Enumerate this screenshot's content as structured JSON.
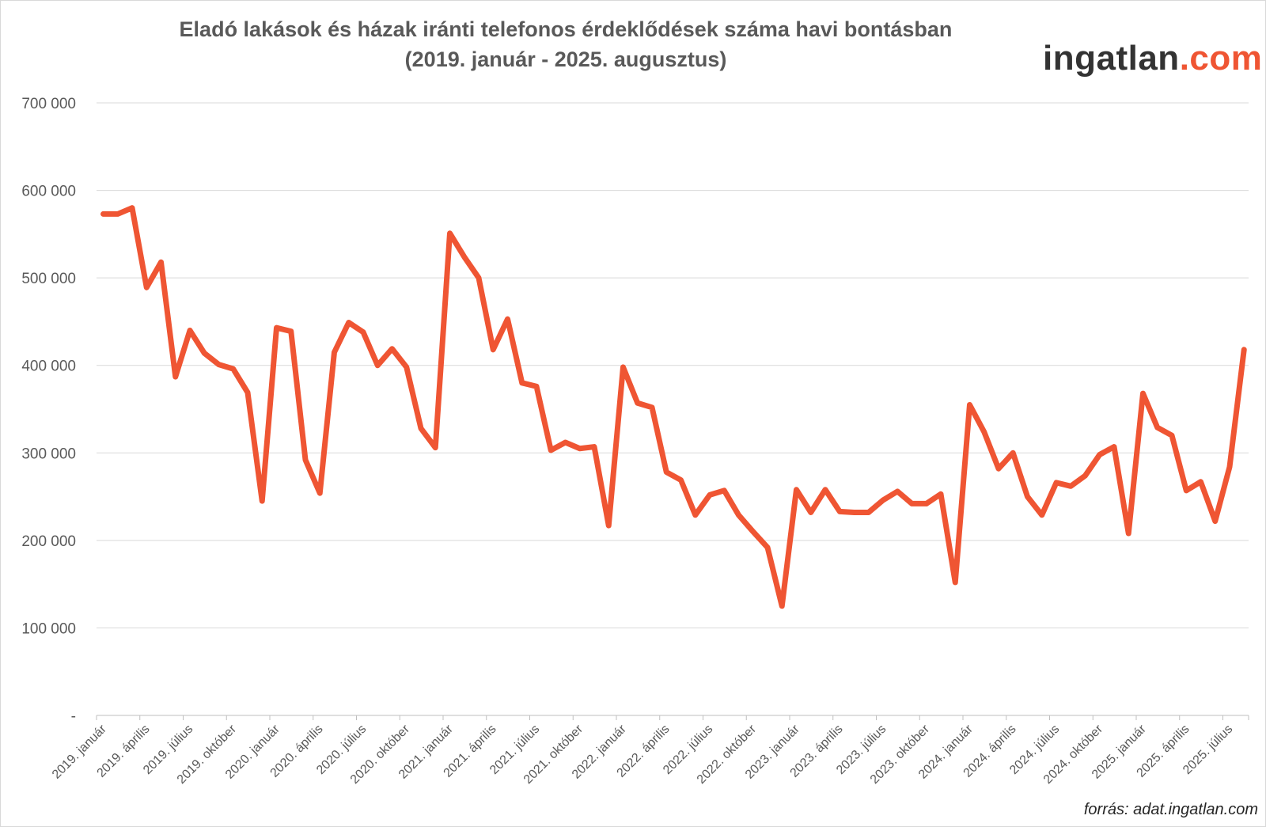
{
  "title_lines": [
    "Eladó lakások és házak iránti telefonos érdeklődések száma havi bontásban",
    "(2019. január - 2025. augusztus)"
  ],
  "brand": {
    "name": "ingatlan",
    "suffix": ".com",
    "name_color": "#333333",
    "suffix_color": "#ef5533"
  },
  "source": "forrás: adat.ingatlan.com",
  "chart_data": {
    "type": "line",
    "title": "Eladó lakások és házak iránti telefonos érdeklődések száma havi bontásban (2019. január - 2025. augusztus)",
    "ylim": [
      0,
      700000
    ],
    "grid": true,
    "legend": "none",
    "line_color": "#ef5533",
    "y_ticks": [
      {
        "value": 0,
        "label": "-"
      },
      {
        "value": 100000,
        "label": "100 000"
      },
      {
        "value": 200000,
        "label": "200 000"
      },
      {
        "value": 300000,
        "label": "300 000"
      },
      {
        "value": 400000,
        "label": "400 000"
      },
      {
        "value": 500000,
        "label": "500 000"
      },
      {
        "value": 600000,
        "label": "600 000"
      },
      {
        "value": 700000,
        "label": "700 000"
      }
    ],
    "x_tick_labels": [
      "2019. január",
      "2019. április",
      "2019. július",
      "2019. október",
      "2020. január",
      "2020. április",
      "2020. július",
      "2020. október",
      "2021. január",
      "2021. április",
      "2021. július",
      "2021. október",
      "2022. január",
      "2022. április",
      "2022. július",
      "2022. október",
      "2023. január",
      "2023. április",
      "2023. július",
      "2023. október",
      "2024. január",
      "2024. április",
      "2024. július",
      "2024. október",
      "2025. január",
      "2025. április",
      "2025. július"
    ],
    "series": [
      {
        "values": [
          573000,
          573000,
          580000,
          489000,
          518000,
          387000,
          440000,
          414000,
          401000,
          396000,
          369000,
          245000,
          443000,
          439000,
          292000,
          254000,
          415000,
          449000,
          438000,
          400000,
          419000,
          398000,
          328000,
          306000,
          551000,
          524000,
          500000,
          418000,
          453000,
          380000,
          376000,
          303000,
          312000,
          305000,
          307000,
          217000,
          398000,
          357000,
          352000,
          278000,
          269000,
          229000,
          252000,
          257000,
          229000,
          210000,
          192000,
          125000,
          258000,
          232000,
          258000,
          233000,
          232000,
          232000,
          246000,
          256000,
          242000,
          242000,
          253000,
          152000,
          355000,
          324000,
          282000,
          300000,
          250000,
          229000,
          266000,
          262000,
          274000,
          298000,
          307000,
          208000,
          368000,
          329000,
          320000,
          257000,
          267000,
          222000,
          284000,
          418000
        ]
      }
    ]
  }
}
